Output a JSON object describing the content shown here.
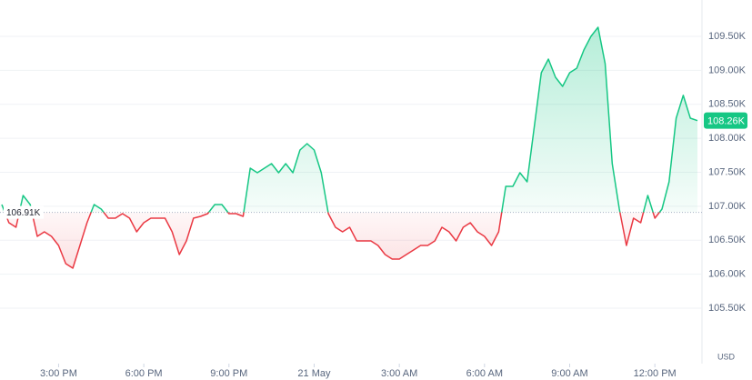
{
  "chart_data": {
    "type": "line",
    "values": [
      107025,
      106757,
      106690,
      107159,
      107025,
      106557,
      106624,
      106557,
      106423,
      106156,
      106089,
      106423,
      106757,
      107025,
      106958,
      106824,
      106824,
      106891,
      106824,
      106624,
      106757,
      106824,
      106824,
      106824,
      106624,
      106289,
      106490,
      106824,
      106851,
      106891,
      107025,
      107025,
      106891,
      106891,
      106851,
      107560,
      107493,
      107560,
      107627,
      107493,
      107627,
      107493,
      107828,
      107921,
      107828,
      107493,
      106891,
      106690,
      106624,
      106690,
      106490,
      106490,
      106490,
      106423,
      106289,
      106222,
      106222,
      106289,
      106356,
      106423,
      106423,
      106490,
      106690,
      106624,
      106490,
      106690,
      106757,
      106624,
      106557,
      106423,
      106624,
      107293,
      107293,
      107493,
      107359,
      108162,
      108965,
      109165,
      108898,
      108764,
      108965,
      109032,
      109299,
      109500,
      109634,
      109098,
      107627,
      106958,
      106423,
      106824,
      106757,
      107159,
      106824,
      106958,
      107359,
      108296,
      108631,
      108296,
      108260
    ],
    "xlim": [
      0,
      98
    ],
    "xticks": [
      {
        "value": 8,
        "label": "3:00 PM"
      },
      {
        "value": 20,
        "label": "6:00 PM"
      },
      {
        "value": 32,
        "label": "9:00 PM"
      },
      {
        "value": 44,
        "label": "21 May"
      },
      {
        "value": 56,
        "label": "3:00 AM"
      },
      {
        "value": 68,
        "label": "6:00 AM"
      },
      {
        "value": 80,
        "label": "9:00 AM"
      },
      {
        "value": 92,
        "label": "12:00 PM"
      }
    ],
    "ylim": [
      104684,
      109968
    ],
    "yticks": [
      {
        "value": 105500,
        "label": "105.50K"
      },
      {
        "value": 106000,
        "label": "106.00K"
      },
      {
        "value": 106500,
        "label": "106.50K"
      },
      {
        "value": 107000,
        "label": "107.00K"
      },
      {
        "value": 107500,
        "label": "107.50K"
      },
      {
        "value": 108000,
        "label": "108.00K"
      },
      {
        "value": 108500,
        "label": "108.50K"
      },
      {
        "value": 109000,
        "label": "109.00K"
      },
      {
        "value": 109500,
        "label": "109.50K"
      }
    ],
    "baseline": {
      "value": 106910,
      "label": "106.91K"
    },
    "last_price": {
      "value": 108260,
      "label": "108.26K"
    },
    "currency": "USD",
    "up_color": "#16c784",
    "down_color": "#ea3943",
    "grid": true
  }
}
